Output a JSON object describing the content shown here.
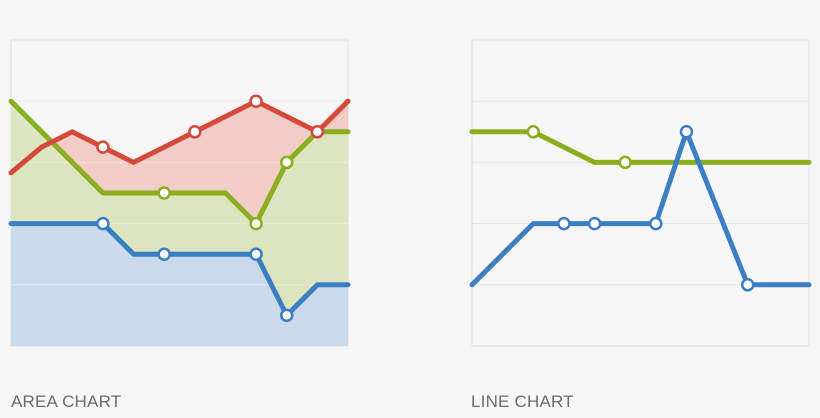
{
  "chart_data": [
    {
      "type": "area",
      "title": "AREA CHART",
      "x": [
        0,
        1,
        2,
        3,
        4,
        5,
        6,
        7,
        8,
        9,
        10,
        11
      ],
      "ylim": [
        0,
        10
      ],
      "grid": true,
      "series": [
        {
          "color": "#3b7ec3",
          "fill": "#c9d9ec",
          "values": [
            4,
            4,
            4,
            4,
            3,
            3,
            3,
            3,
            3,
            1,
            2,
            2
          ],
          "markers": [
            3,
            5,
            8,
            9
          ]
        },
        {
          "color": "#8aae1c",
          "fill": "#dbe5c0",
          "values": [
            8,
            7,
            6,
            5,
            5,
            5,
            5,
            5,
            4,
            6,
            7,
            7
          ],
          "markers": [
            5,
            8,
            9
          ]
        },
        {
          "color": "#d34a3b",
          "fill": "#f1c9c3",
          "values": [
            5.66,
            6.5,
            7,
            6.5,
            6,
            6.5,
            7,
            7.5,
            8,
            7.5,
            7,
            8
          ],
          "markers": [
            3,
            6,
            8,
            10
          ]
        }
      ]
    },
    {
      "type": "line",
      "title": "LINE CHART",
      "x": [
        0,
        1,
        2,
        3,
        4,
        5,
        6,
        7,
        8,
        9,
        10,
        11
      ],
      "ylim": [
        0,
        10
      ],
      "grid": true,
      "series": [
        {
          "color": "#8aae1c",
          "values": [
            7,
            7,
            7,
            6.5,
            6,
            6,
            6,
            6,
            6,
            6,
            6,
            6
          ],
          "markers": [
            2,
            5
          ]
        },
        {
          "color": "#3b7ec3",
          "values": [
            2,
            3,
            4,
            4,
            4,
            4,
            4,
            7,
            4.5,
            2,
            2,
            2
          ],
          "markers": [
            3,
            4,
            6,
            7,
            9
          ]
        }
      ]
    }
  ]
}
